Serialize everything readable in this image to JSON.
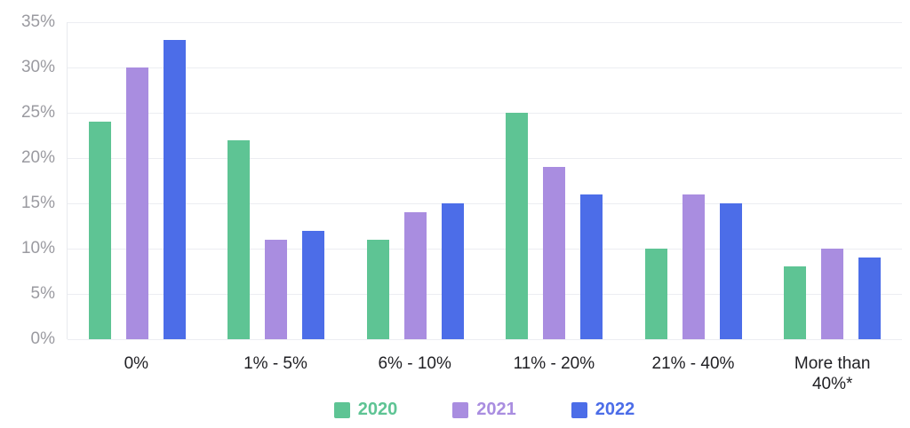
{
  "chart_data": {
    "type": "bar",
    "title": "",
    "xlabel": "",
    "ylabel": "",
    "categories": [
      "0%",
      "1% - 5%",
      "6% - 10%",
      "11% - 20%",
      "21% - 40%",
      "More than\n40%*"
    ],
    "series": [
      {
        "name": "2020",
        "color": "#5ec494",
        "values": [
          24,
          22,
          11,
          25,
          10,
          8
        ]
      },
      {
        "name": "2021",
        "color": "#a98de0",
        "values": [
          30,
          11,
          14,
          19,
          16,
          10
        ]
      },
      {
        "name": "2022",
        "color": "#4c6de8",
        "values": [
          33,
          12,
          15,
          16,
          15,
          9
        ]
      }
    ],
    "ylim": [
      0,
      35
    ],
    "ytick_step": 5,
    "ytick_suffix": "%",
    "grid": true,
    "legend_position": "bottom"
  },
  "style": {
    "gridline_color": "#ecedf2",
    "axis_border_color": "#e8eaee",
    "ytick_color": "#9a9aa0",
    "xlabel_color": "#1f1f23",
    "background": "#ffffff"
  }
}
